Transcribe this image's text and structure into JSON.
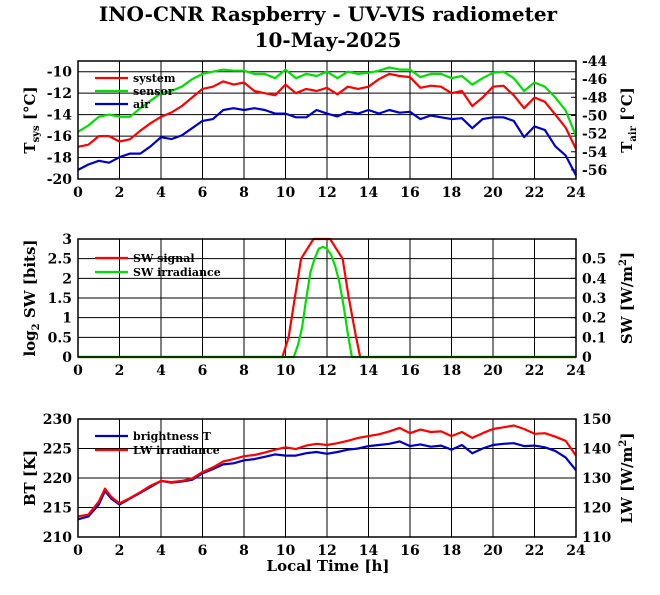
{
  "title": "INO-CNR Raspberry - UV-VIS radiometer",
  "date": "10-May-2025",
  "xlabel": "Local Time [h]",
  "x_ticks": [
    "0",
    "2",
    "4",
    "6",
    "8",
    "10",
    "12",
    "14",
    "16",
    "18",
    "20",
    "22",
    "24"
  ],
  "chart_data": [
    {
      "type": "line",
      "xlim": [
        0,
        24
      ],
      "ylabel_left": "T_sys [°C]",
      "ylabel_right": "T_air [°C]",
      "ylim_left": [
        -20,
        -9
      ],
      "ylim_right": [
        -57,
        -44
      ],
      "yticks_left": [
        "-10",
        "-12",
        "-14",
        "-16",
        "-18",
        "-20"
      ],
      "yticks_right": [
        "-44",
        "-46",
        "-48",
        "-50",
        "-52",
        "-54",
        "-56"
      ],
      "grid": true,
      "legend_position": "top-left",
      "series": [
        {
          "name": "system",
          "color": "#ff0000",
          "axis": "left",
          "x": [
            0,
            0.5,
            1,
            1.5,
            2,
            2.5,
            3,
            3.5,
            4,
            4.5,
            5,
            5.5,
            6,
            6.5,
            7,
            7.5,
            8,
            8.5,
            9,
            9.5,
            10,
            10.5,
            11,
            11.5,
            12,
            12.5,
            13,
            13.5,
            14,
            14.5,
            15,
            15.5,
            16,
            16.5,
            17,
            17.5,
            18,
            18.5,
            19,
            19.5,
            20,
            20.5,
            21,
            21.5,
            22,
            22.5,
            23,
            23.5,
            24
          ],
          "y": [
            -17,
            -16.8,
            -16,
            -16,
            -16.5,
            -16.3,
            -15.5,
            -14.8,
            -14.2,
            -13.8,
            -13.2,
            -12.4,
            -11.6,
            -11.4,
            -10.9,
            -11.2,
            -11,
            -11.8,
            -12,
            -12.2,
            -11.2,
            -12,
            -11.6,
            -11.8,
            -11.5,
            -12.1,
            -11.4,
            -11.6,
            -11.4,
            -10.7,
            -10.2,
            -10.4,
            -10.5,
            -11.5,
            -11.3,
            -11.4,
            -12,
            -11.8,
            -13.2,
            -12.4,
            -11.4,
            -11.3,
            -12.2,
            -13.4,
            -12.4,
            -12.8,
            -14,
            -15.2,
            -17.2
          ]
        },
        {
          "name": "sensor",
          "color": "#00e000",
          "axis": "left",
          "x": [
            0,
            0.5,
            1,
            1.5,
            2,
            2.5,
            3,
            3.5,
            4,
            4.5,
            5,
            5.5,
            6,
            6.5,
            7,
            7.5,
            8,
            8.5,
            9,
            9.5,
            10,
            10.5,
            11,
            11.5,
            12,
            12.5,
            13,
            13.5,
            14,
            14.5,
            15,
            15.5,
            16,
            16.5,
            17,
            17.5,
            18,
            18.5,
            19,
            19.5,
            20,
            20.5,
            21,
            21.5,
            22,
            22.5,
            23,
            23.5,
            24
          ],
          "y": [
            -15.6,
            -15,
            -14.2,
            -14,
            -14.2,
            -14.2,
            -13.4,
            -12.7,
            -12,
            -11.8,
            -11.4,
            -10.7,
            -10.2,
            -10,
            -9.8,
            -9.9,
            -9.9,
            -10.2,
            -10.2,
            -10.6,
            -9.8,
            -10.6,
            -10.2,
            -10.4,
            -10,
            -10.6,
            -10,
            -10.2,
            -10.1,
            -9.9,
            -9.6,
            -9.8,
            -9.8,
            -10.5,
            -10.2,
            -10.2,
            -10.6,
            -10.4,
            -11.2,
            -10.6,
            -10.1,
            -10,
            -10.6,
            -11.8,
            -11,
            -11.4,
            -12.4,
            -13.6,
            -16
          ]
        },
        {
          "name": "air",
          "color": "#0000cc",
          "axis": "right",
          "x": [
            0,
            0.5,
            1,
            1.5,
            2,
            2.5,
            3,
            3.5,
            4,
            4.5,
            5,
            5.5,
            6,
            6.5,
            7,
            7.5,
            8,
            8.5,
            9,
            9.5,
            10,
            10.5,
            11,
            11.5,
            12,
            12.5,
            13,
            13.5,
            14,
            14.5,
            15,
            15.5,
            16,
            16.5,
            17,
            17.5,
            18,
            18.5,
            19,
            19.5,
            20,
            20.5,
            21,
            21.5,
            22,
            22.5,
            23,
            23.5,
            24
          ],
          "y": [
            -56,
            -55.4,
            -55,
            -55.2,
            -54.6,
            -54.2,
            -54.2,
            -53.4,
            -52.4,
            -52.6,
            -52.2,
            -51.4,
            -50.6,
            -50.4,
            -49.4,
            -49.2,
            -49.4,
            -49.2,
            -49.4,
            -49.8,
            -49.8,
            -50.2,
            -50.2,
            -49.4,
            -49.8,
            -50.1,
            -49.6,
            -49.8,
            -49.4,
            -49.8,
            -49.4,
            -49.7,
            -49.6,
            -50.4,
            -50,
            -50.2,
            -50.4,
            -50.3,
            -51.4,
            -50.4,
            -50.2,
            -50.2,
            -50.6,
            -52.4,
            -51.2,
            -51.6,
            -53.4,
            -54.4,
            -56.6
          ]
        }
      ]
    },
    {
      "type": "line",
      "xlim": [
        0,
        24
      ],
      "ylabel_left": "log2 SW [bits]",
      "ylabel_right": "SW [W/m2]",
      "ylim_left": [
        0,
        3
      ],
      "ylim_right": [
        0,
        0.6
      ],
      "yticks_left": [
        "3",
        "2.5",
        "2",
        "1.5",
        "1",
        "0.5",
        "0"
      ],
      "yticks_right": [
        "0.5",
        "0.4",
        "0.3",
        "0.2",
        "0.1",
        "0"
      ],
      "grid": true,
      "legend_position": "top-left",
      "series": [
        {
          "name": "SW signal",
          "color": "#ff0000",
          "axis": "left",
          "x": [
            0,
            9.85,
            10.15,
            10.45,
            10.75,
            11.05,
            11.35,
            11.6,
            11.85,
            12.15,
            12.45,
            12.75,
            13.05,
            13.4,
            13.6,
            24
          ],
          "y": [
            0,
            0,
            0.5,
            1.5,
            2.5,
            2.75,
            3,
            3,
            3,
            3,
            2.75,
            2.5,
            1.5,
            0.5,
            0,
            0
          ]
        },
        {
          "name": "SW irradiance",
          "color": "#00e000",
          "axis": "right",
          "x": [
            0,
            10.4,
            10.6,
            10.8,
            11.0,
            11.2,
            11.4,
            11.6,
            11.8,
            12.0,
            12.2,
            12.4,
            12.6,
            12.8,
            13.0,
            13.2,
            24
          ],
          "y": [
            0,
            0,
            0.06,
            0.15,
            0.3,
            0.43,
            0.5,
            0.55,
            0.56,
            0.55,
            0.52,
            0.46,
            0.38,
            0.26,
            0.12,
            0,
            0
          ]
        }
      ]
    },
    {
      "type": "line",
      "xlim": [
        0,
        24
      ],
      "ylabel_left": "BT [K]",
      "ylabel_right": "LW [W/m2]",
      "ylim_left": [
        210,
        230
      ],
      "ylim_right": [
        110,
        150
      ],
      "yticks_left": [
        "230",
        "225",
        "220",
        "215",
        "210"
      ],
      "yticks_right": [
        "150",
        "140",
        "130",
        "120",
        "110"
      ],
      "grid": true,
      "legend_position": "top-left",
      "series": [
        {
          "name": "brightness T",
          "color": "#0000cc",
          "axis": "left",
          "x": [
            0,
            0.5,
            1,
            1.3,
            1.6,
            2,
            2.5,
            3,
            3.5,
            4,
            4.5,
            5,
            5.5,
            6,
            6.5,
            7,
            7.5,
            8,
            8.5,
            9,
            9.5,
            10,
            10.5,
            11,
            11.5,
            12,
            12.5,
            13,
            13.5,
            14,
            14.5,
            15,
            15.5,
            16,
            16.5,
            17,
            17.5,
            18,
            18.5,
            19,
            19.5,
            20,
            20.5,
            21,
            21.5,
            22,
            22.5,
            23,
            23.5,
            24
          ],
          "y": [
            213,
            213.5,
            215.5,
            217.8,
            216.5,
            215.5,
            216.5,
            217.5,
            218.5,
            219.5,
            219.2,
            219.4,
            219.7,
            220.8,
            221.5,
            222.3,
            222.5,
            223,
            223.2,
            223.6,
            224,
            223.8,
            223.8,
            224.2,
            224.4,
            224.1,
            224.4,
            224.8,
            225,
            225.4,
            225.6,
            225.8,
            226.2,
            225.4,
            225.7,
            225.3,
            225.5,
            224.8,
            225.6,
            224.2,
            225,
            225.6,
            225.8,
            225.9,
            225.4,
            225.5,
            225.2,
            224.6,
            223.5,
            221.3
          ]
        },
        {
          "name": "LW irradiance",
          "color": "#ff0000",
          "axis": "right",
          "x": [
            0,
            0.5,
            1,
            1.3,
            1.6,
            2,
            2.5,
            3,
            3.5,
            4,
            4.5,
            5,
            5.5,
            6,
            6.5,
            7,
            7.5,
            8,
            8.5,
            9,
            9.5,
            10,
            10.5,
            11,
            11.5,
            12,
            12.5,
            13,
            13.5,
            14,
            14.5,
            15,
            15.5,
            16,
            16.5,
            17,
            17.5,
            18,
            18.5,
            19,
            19.5,
            20,
            20.5,
            21,
            21.5,
            22,
            22.5,
            23,
            23.5,
            24
          ],
          "y": [
            117,
            117.6,
            122,
            126.4,
            123.6,
            121.4,
            123.2,
            125.2,
            127.4,
            129,
            128.6,
            129,
            129.8,
            132,
            133.6,
            135.6,
            136.4,
            137.4,
            137.8,
            138.6,
            139.6,
            140.4,
            139.8,
            141,
            141.6,
            141.2,
            141.8,
            142.6,
            143.6,
            144.2,
            144.8,
            145.8,
            147,
            145.2,
            146.4,
            145.6,
            145.8,
            144.2,
            145.6,
            143.6,
            145.2,
            146.6,
            147.2,
            147.8,
            146.6,
            145,
            145.2,
            144,
            142.6,
            137.6
          ]
        }
      ]
    }
  ]
}
